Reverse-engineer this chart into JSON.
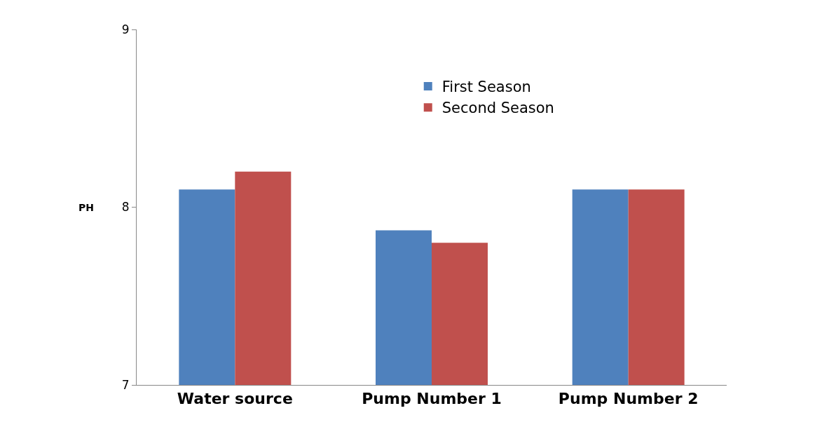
{
  "chart_data": {
    "type": "bar",
    "ylabel": "PH",
    "categories": [
      "Water source",
      "Pump Number 1",
      "Pump Number 2"
    ],
    "series": [
      {
        "name": "First Season",
        "color": "#4f81bd",
        "values": [
          8.1,
          7.87,
          8.1
        ]
      },
      {
        "name": "Second Season",
        "color": "#c0504d",
        "values": [
          8.2,
          7.8,
          8.1
        ]
      }
    ],
    "ylim": [
      7,
      9
    ],
    "yticks": [
      7,
      8,
      9
    ],
    "legend": "top right"
  }
}
